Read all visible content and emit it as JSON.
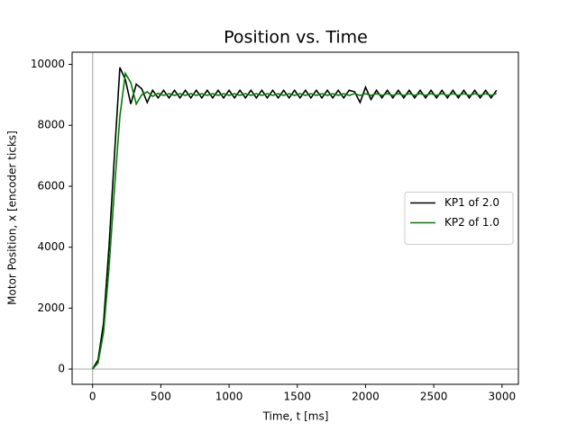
{
  "chart_data": {
    "type": "line",
    "title": "Position vs. Time",
    "xlabel": "Time, t [ms]",
    "ylabel": "Motor Position, x [encoder ticks]",
    "x": [
      0,
      40,
      80,
      120,
      160,
      200,
      240,
      280,
      320,
      360,
      400,
      440,
      480,
      520,
      560,
      600,
      640,
      680,
      720,
      760,
      800,
      840,
      880,
      920,
      960,
      1000,
      1040,
      1080,
      1120,
      1160,
      1200,
      1240,
      1280,
      1320,
      1360,
      1400,
      1440,
      1480,
      1520,
      1560,
      1600,
      1640,
      1680,
      1720,
      1760,
      1800,
      1840,
      1880,
      1920,
      1960,
      2000,
      2040,
      2080,
      2120,
      2160,
      2200,
      2240,
      2280,
      2320,
      2360,
      2400,
      2440,
      2480,
      2520,
      2560,
      2600,
      2640,
      2680,
      2720,
      2760,
      2800,
      2840,
      2880,
      2920,
      2960
    ],
    "series": [
      {
        "name": "KP1 of 2.0",
        "color": "#000000",
        "values": [
          0,
          300,
          1500,
          4000,
          7000,
          9900,
          9500,
          8700,
          9350,
          9200,
          8750,
          9150,
          8900,
          9150,
          8900,
          9150,
          8900,
          9150,
          8900,
          9150,
          8900,
          9150,
          8900,
          9150,
          8900,
          9150,
          8900,
          9150,
          8900,
          9150,
          8900,
          9150,
          8900,
          9150,
          8900,
          9150,
          8900,
          9150,
          8900,
          9150,
          8900,
          9150,
          8900,
          9150,
          8900,
          9150,
          8900,
          9150,
          9100,
          8750,
          9250,
          8850,
          9150,
          8900,
          9150,
          8900,
          9150,
          8900,
          9150,
          8900,
          9150,
          8900,
          9150,
          8900,
          9150,
          8900,
          9150,
          8900,
          9150,
          8900,
          9150,
          8900,
          9150,
          8900,
          9150
        ]
      },
      {
        "name": "KP2 of 1.0",
        "color": "#008000",
        "values": [
          0,
          200,
          1200,
          3300,
          5900,
          8300,
          9700,
          9400,
          8700,
          9000,
          9100,
          8950,
          9050,
          8980,
          9040,
          8980,
          9040,
          8980,
          9040,
          8980,
          9040,
          8980,
          9040,
          8980,
          9040,
          8980,
          9040,
          8980,
          9040,
          8980,
          9040,
          8980,
          9040,
          8980,
          9040,
          8980,
          9040,
          8980,
          9040,
          8980,
          9040,
          8980,
          9040,
          8980,
          9040,
          8980,
          9040,
          8980,
          9040,
          8980,
          9040,
          8980,
          9040,
          8980,
          9040,
          8980,
          9040,
          8980,
          9040,
          8980,
          9040,
          8980,
          9040,
          8980,
          9040,
          8980,
          9040,
          8980,
          9040,
          8980,
          9040,
          8980,
          9040,
          8980,
          9040
        ]
      }
    ],
    "xlim": [
      -150,
      3120
    ],
    "ylim": [
      -500,
      10400
    ],
    "xticks": [
      0,
      500,
      1000,
      1500,
      2000,
      2500,
      3000
    ],
    "yticks": [
      0,
      2000,
      4000,
      6000,
      8000,
      10000
    ],
    "zero_lines": true,
    "legend": "center right"
  }
}
